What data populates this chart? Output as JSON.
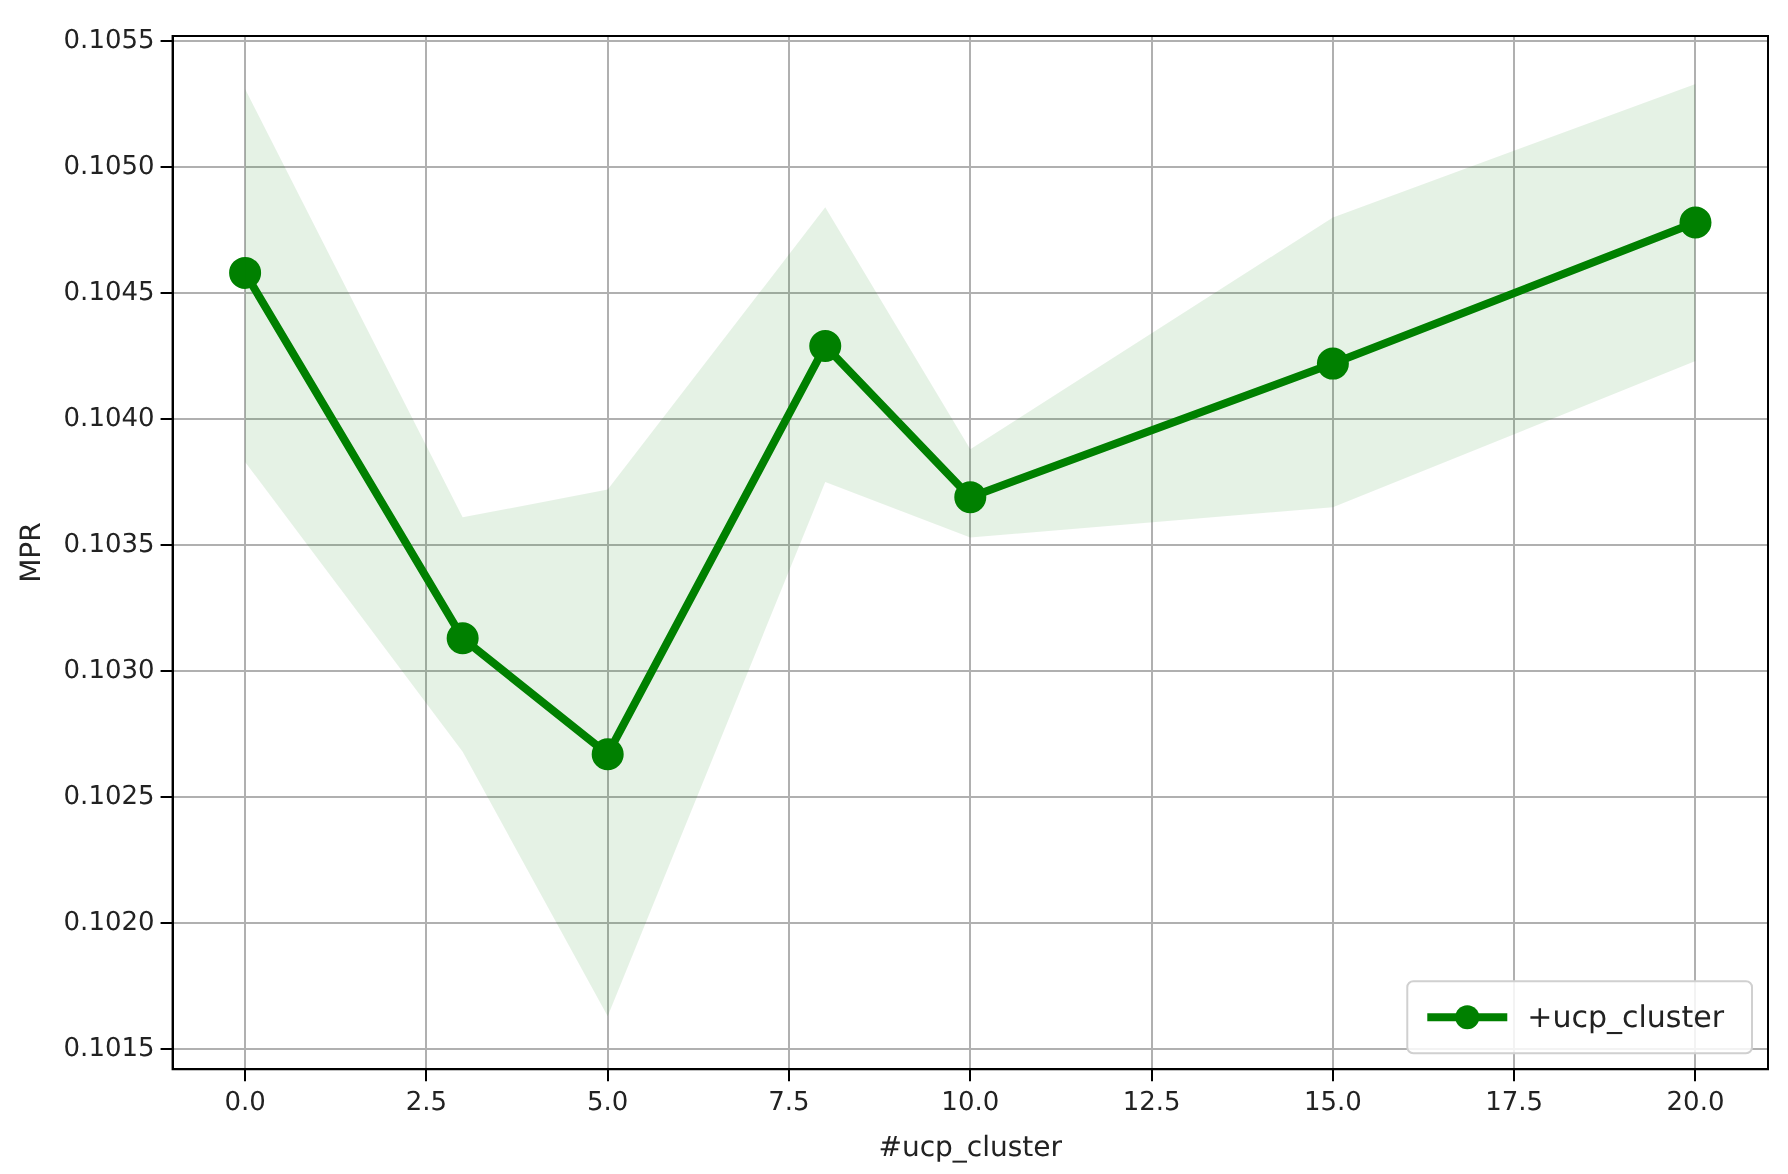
{
  "chart_data": {
    "type": "line",
    "xlabel": "#ucp_cluster",
    "ylabel": "MPR",
    "x": [
      0,
      3,
      5,
      8,
      10,
      15,
      20
    ],
    "series": [
      {
        "name": "+ucp_cluster",
        "color": "#008000",
        "values": [
          0.10458,
          0.10313,
          0.10267,
          0.10429,
          0.10369,
          0.10422,
          0.10478
        ],
        "lower": [
          0.10383,
          0.10268,
          0.10163,
          0.10375,
          0.10353,
          0.10365,
          0.10423
        ],
        "upper": [
          0.10531,
          0.10361,
          0.10372,
          0.10484,
          0.10388,
          0.1048,
          0.10533
        ]
      }
    ],
    "xlim": [
      -1.0,
      21.0
    ],
    "xticks": [
      {
        "value": 0,
        "label": "0.0"
      },
      {
        "value": 2.5,
        "label": "2.5"
      },
      {
        "value": 5,
        "label": "5.0"
      },
      {
        "value": 7.5,
        "label": "7.5"
      },
      {
        "value": 10,
        "label": "10.0"
      },
      {
        "value": 12.5,
        "label": "12.5"
      },
      {
        "value": 15,
        "label": "15.0"
      },
      {
        "value": 17.5,
        "label": "17.5"
      },
      {
        "value": 20,
        "label": "20.0"
      }
    ],
    "ylim": [
      0.10142,
      0.10552
    ],
    "yticks": [
      0.1015,
      {
        "value": 0.102,
        "label": "0.1020"
      },
      0.1025,
      {
        "value": 0.103,
        "label": "0.1030"
      },
      0.1035,
      {
        "value": 0.104,
        "label": "0.1040"
      },
      0.1045,
      {
        "value": 0.105,
        "label": "0.1050"
      },
      0.1055
    ],
    "grid": true,
    "legend": "bottom right",
    "marker": "circle",
    "line_style": "solid"
  }
}
